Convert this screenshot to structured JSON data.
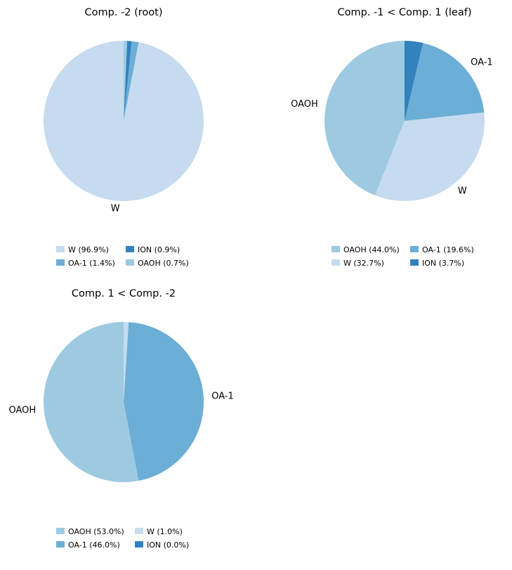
{
  "colors": {
    "W": "#c6dbef",
    "OA-1": "#6baed6",
    "ION": "#3182bd",
    "OAOH": "#9ecae1"
  },
  "chart_data": [
    {
      "type": "pie",
      "title": "Comp. -2 (root)",
      "slices": [
        {
          "label": "W",
          "value": 96.9,
          "color": "#c6dbef",
          "show_label": true
        },
        {
          "label": "OA-1",
          "value": 1.4,
          "color": "#6baed6",
          "show_label": false
        },
        {
          "label": "ION",
          "value": 0.9,
          "color": "#3182bd",
          "show_label": false
        },
        {
          "label": "OAOH",
          "value": 0.7,
          "color": "#9ecae1",
          "show_label": false
        }
      ],
      "legend": {
        "placement": "bottom",
        "columns": 2,
        "entries": [
          "W (96.9%)",
          "ION (0.9%)",
          "OA-1 (1.4%)",
          "OAOH (0.7%)"
        ],
        "entry_colors": [
          "#c6dbef",
          "#3182bd",
          "#6baed6",
          "#9ecae1"
        ]
      }
    },
    {
      "type": "pie",
      "title": "Comp. -1 < Comp. 1 (leaf)",
      "slices": [
        {
          "label": "OAOH",
          "value": 44.0,
          "color": "#9ecae1",
          "show_label": true
        },
        {
          "label": "W",
          "value": 32.7,
          "color": "#c6dbef",
          "show_label": true
        },
        {
          "label": "OA-1",
          "value": 19.6,
          "color": "#6baed6",
          "show_label": true
        },
        {
          "label": "ION",
          "value": 3.7,
          "color": "#3182bd",
          "show_label": false
        }
      ],
      "legend": {
        "placement": "bottom",
        "columns": 2,
        "entries": [
          "OAOH (44.0%)",
          "OA-1 (19.6%)",
          "W (32.7%)",
          "ION (3.7%)"
        ],
        "entry_colors": [
          "#9ecae1",
          "#6baed6",
          "#c6dbef",
          "#3182bd"
        ]
      }
    },
    {
      "type": "pie",
      "title": "Comp. 1 < Comp. -2",
      "slices": [
        {
          "label": "OAOH",
          "value": 53.0,
          "color": "#9ecae1",
          "show_label": true
        },
        {
          "label": "OA-1",
          "value": 46.0,
          "color": "#6baed6",
          "show_label": true
        },
        {
          "label": "W",
          "value": 1.0,
          "color": "#c6dbef",
          "show_label": false
        },
        {
          "label": "ION",
          "value": 0.0,
          "color": "#3182bd",
          "show_label": false
        }
      ],
      "legend": {
        "placement": "bottom",
        "columns": 2,
        "entries": [
          "OAOH (53.0%)",
          "W (1.0%)",
          "OA-1 (46.0%)",
          "ION (0.0%)"
        ],
        "entry_colors": [
          "#9ecae1",
          "#c6dbef",
          "#6baed6",
          "#3182bd"
        ]
      }
    }
  ]
}
